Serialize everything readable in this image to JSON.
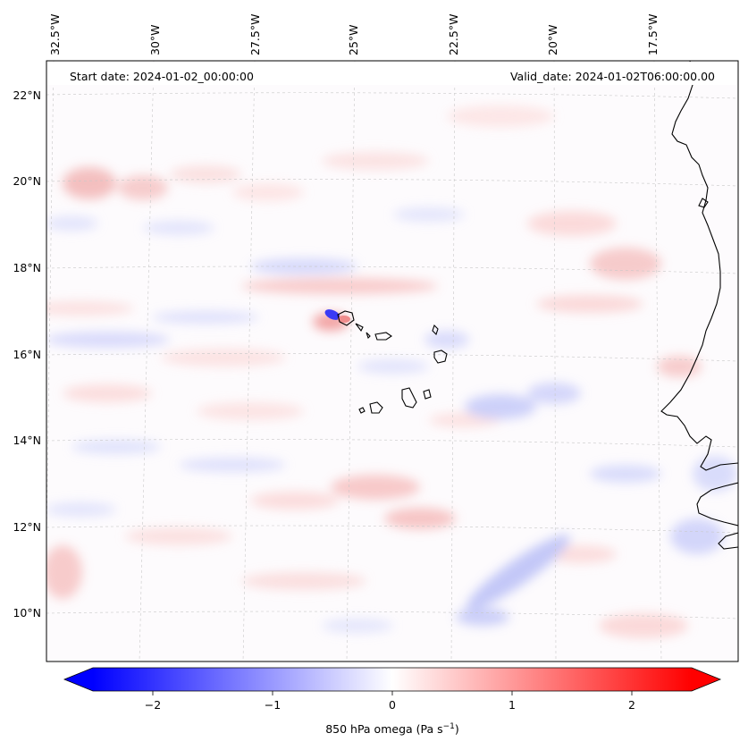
{
  "map": {
    "start_label": "Start date: 2024-01-02_00:00:00",
    "valid_label": "Valid_date: 2024-01-02T06:00:00.00",
    "lon_ticks": [
      "32.5°W",
      "30°W",
      "27.5°W",
      "25°W",
      "22.5°W",
      "20°W",
      "17.5°W"
    ],
    "lat_ticks": [
      "22°N",
      "20°N",
      "18°N",
      "16°N",
      "14°N",
      "12°N",
      "10°N"
    ]
  },
  "colorbar": {
    "title": "850 hPa omega (Pa s",
    "title_sup": "−1",
    "title_end": ")",
    "ticks": [
      "−2",
      "−1",
      "0",
      "1",
      "2"
    ],
    "range": [
      -2.6,
      2.6
    ],
    "colormap": "bwr",
    "extend": "both"
  },
  "colors": {
    "negative": "#0000ff",
    "zero": "#ffffff",
    "positive": "#ff0000",
    "coastline": "#000000",
    "gridline": "#c8c8c8"
  }
}
